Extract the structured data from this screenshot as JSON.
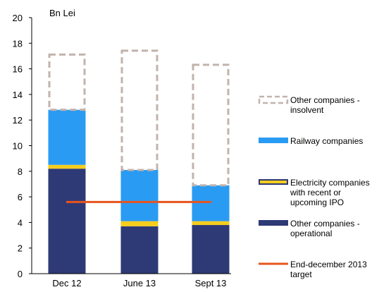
{
  "chart_data": {
    "type": "bar",
    "stacked": true,
    "unit_label": "Bn Lei",
    "categories": [
      "Dec 12",
      "June 13",
      "Sept 13"
    ],
    "ylim": [
      0,
      20
    ],
    "yticks": [
      0,
      2,
      4,
      6,
      8,
      10,
      12,
      14,
      16,
      18,
      20
    ],
    "grid": false,
    "legend_position": "right",
    "series": [
      {
        "key": "operational",
        "name": "Other companies - operational",
        "color": "#2E3A75",
        "style": "solid",
        "values": [
          8.2,
          3.7,
          3.8
        ]
      },
      {
        "key": "electricity",
        "name": "Electricity companies with recent or upcoming IPO",
        "color": "#F5CE1E",
        "style": "solid",
        "values": [
          0.3,
          0.4,
          0.3
        ]
      },
      {
        "key": "railway",
        "name": "Railway companies",
        "color": "#2A9BF2",
        "style": "solid",
        "values": [
          4.3,
          4.0,
          2.8
        ]
      },
      {
        "key": "insolvent",
        "name": "Other companies - insolvent",
        "color": "#C2B3AC",
        "style": "dashed",
        "values": [
          4.4,
          9.4,
          9.5
        ]
      }
    ],
    "target_line": {
      "name": "End-december 2013 target",
      "value": 5.6,
      "color": "#E8541E"
    }
  }
}
